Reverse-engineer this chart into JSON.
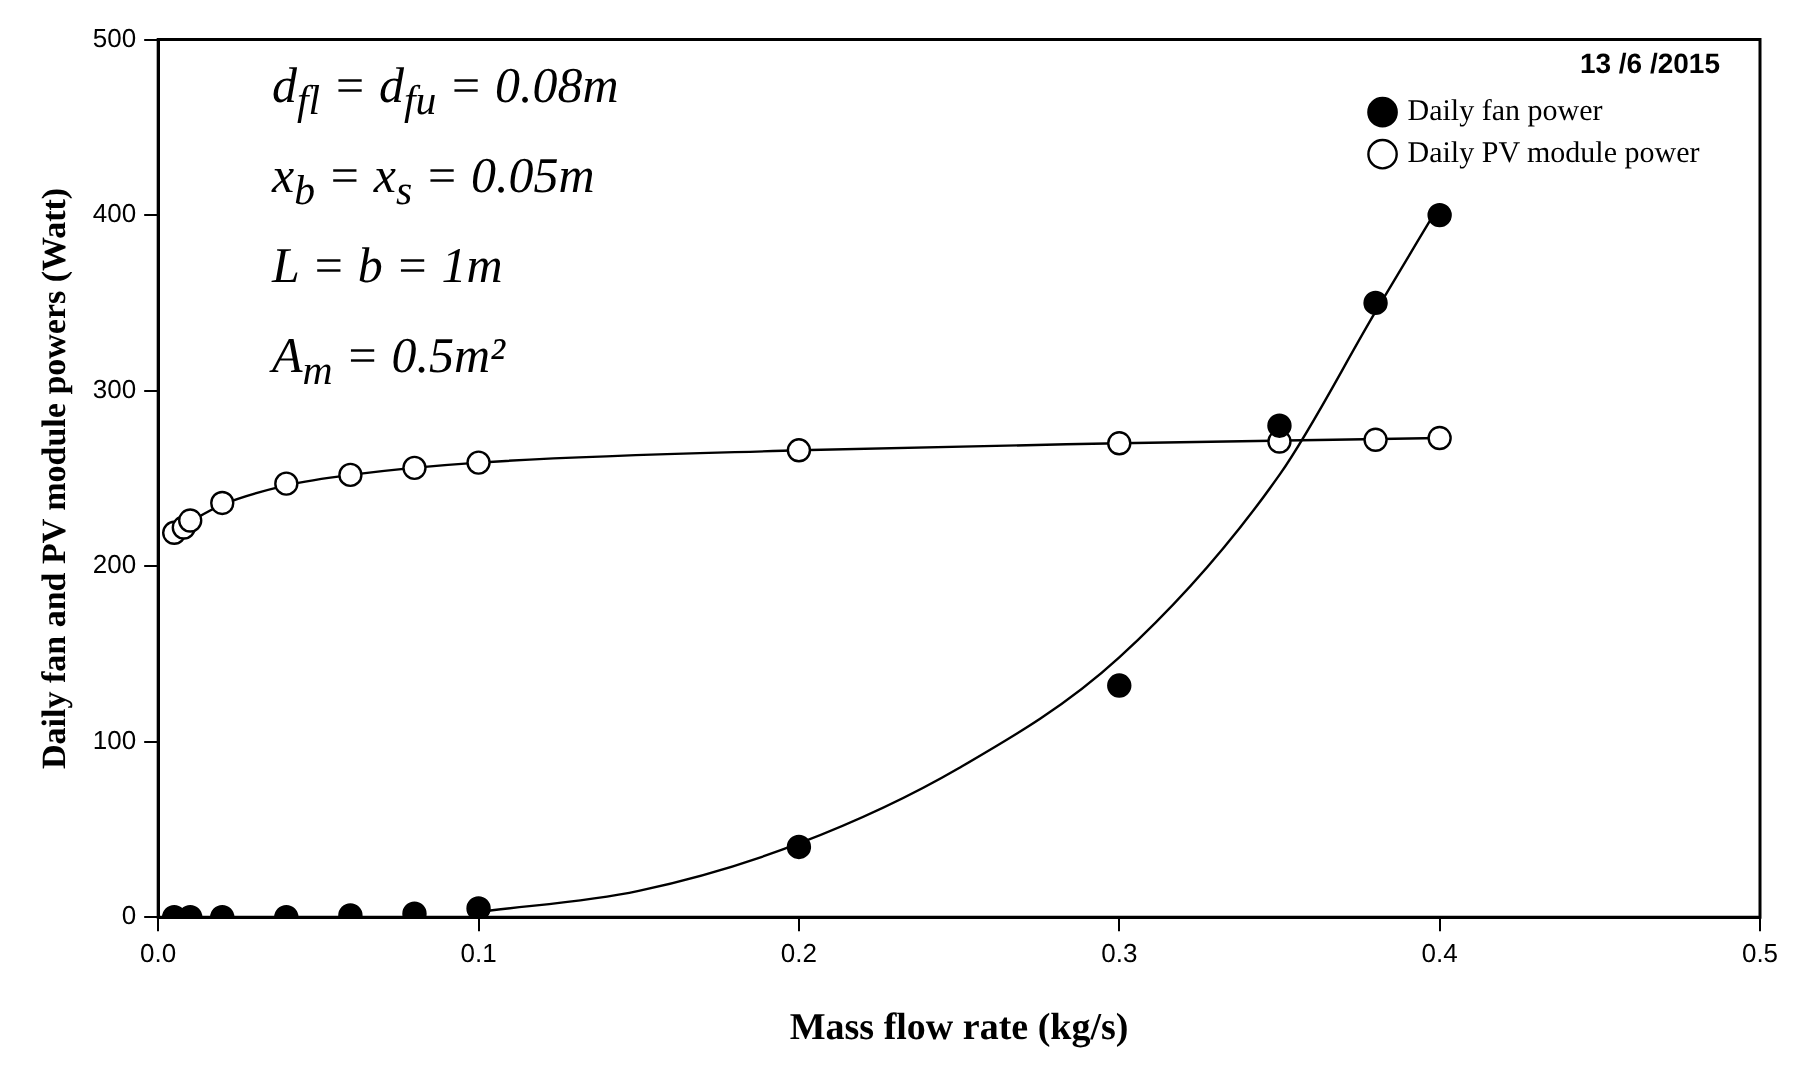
{
  "chart_data": {
    "type": "scatter",
    "xlabel": "Mass flow rate (kg/s)",
    "ylabel": "Daily fan and PV module powers (Watt)",
    "annotations": [
      "d$_{fl}$ = d$_{fu}$ = 0.08m",
      "x$_{b}$ = x$_{s}$ = 0.05m",
      "L = b = 1m",
      "A$_{m}$ = 0.5m²",
      "13 /6 /2015"
    ],
    "series": [
      {
        "name": "Daily fan power",
        "color": "#000000",
        "x": [
          0.005,
          0.01,
          0.02,
          0.04,
          0.06,
          0.08,
          0.1,
          0.2,
          0.3,
          0.35,
          0.38,
          0.4
        ],
        "values": [
          0,
          0,
          0,
          0,
          1,
          2,
          5,
          40,
          132,
          280,
          350,
          400
        ]
      },
      {
        "name": "Daily PV module power",
        "color": "#ffffff",
        "x": [
          0.005,
          0.008,
          0.01,
          0.02,
          0.04,
          0.06,
          0.08,
          0.1,
          0.2,
          0.3,
          0.35,
          0.38,
          0.4
        ],
        "values": [
          219,
          222,
          226,
          236,
          247,
          252,
          256,
          259,
          266,
          270,
          271,
          272,
          273
        ]
      },
      {
        "type": "line",
        "marker": "none",
        "color": "#000000",
        "x": [
          0.1,
          0.15,
          0.2,
          0.25,
          0.3,
          0.35,
          0.38,
          0.4
        ],
        "values": [
          3,
          15,
          42,
          85,
          148,
          252,
          345,
          406
        ]
      },
      {
        "type": "line",
        "marker": "none",
        "color": "#000000",
        "x": [
          0.005,
          0.01,
          0.02,
          0.04,
          0.06,
          0.1,
          0.2,
          0.3,
          0.4
        ],
        "values": [
          218,
          225,
          235,
          246,
          252,
          259,
          266,
          270,
          273
        ]
      }
    ],
    "xlim": [
      0,
      0.5
    ],
    "xticks": [
      {
        "value": 0,
        "label": "0.0"
      },
      0.1,
      0.2,
      0.3,
      0.4,
      0.5
    ],
    "ylim": [
      0,
      500
    ],
    "yticks": [
      0,
      100,
      200,
      300,
      400,
      500
    ],
    "grid": false,
    "legend": "top right",
    "marker": "circle"
  }
}
